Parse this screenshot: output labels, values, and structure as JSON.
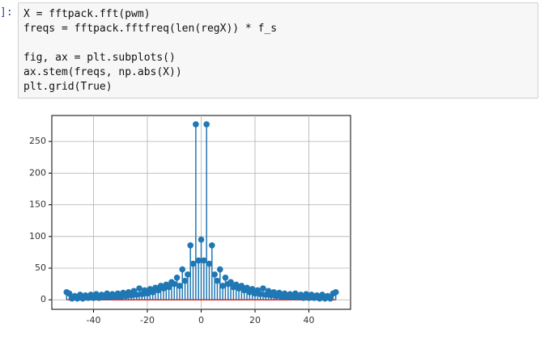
{
  "prompt": "]:",
  "code": [
    [
      "X = fftpack.fft(pwm)",
      "freqs = fftpack.fftfreq(len(regX)) * f_s"
    ],
    [
      "fig, ax = plt.subplots()",
      "ax.stem(freqs, np.abs(X))",
      "plt.grid(True)"
    ]
  ],
  "chart_data": {
    "type": "stem",
    "color": "#1f77b4",
    "baseline_color": "#d62728",
    "grid": true,
    "x": [
      -50,
      -49,
      -48,
      -47,
      -46,
      -45,
      -44,
      -43,
      -42,
      -41,
      -40,
      -39,
      -38,
      -37,
      -36,
      -35,
      -34,
      -33,
      -32,
      -31,
      -30,
      -29,
      -28,
      -27,
      -26,
      -25,
      -24,
      -23,
      -22,
      -21,
      -20,
      -19,
      -18,
      -17,
      -16,
      -15,
      -14,
      -13,
      -12,
      -11,
      -10,
      -9,
      -8,
      -7,
      -6,
      -5,
      -4,
      -3,
      -2,
      -1,
      0,
      1,
      2,
      3,
      4,
      5,
      6,
      7,
      8,
      9,
      10,
      11,
      12,
      13,
      14,
      15,
      16,
      17,
      18,
      19,
      20,
      21,
      22,
      23,
      24,
      25,
      26,
      27,
      28,
      29,
      30,
      31,
      32,
      33,
      34,
      35,
      36,
      37,
      38,
      39,
      40,
      41,
      42,
      43,
      44,
      45,
      46,
      47,
      48,
      49,
      50
    ],
    "values": [
      12,
      10,
      2,
      6,
      2,
      8,
      2,
      7,
      3,
      8,
      3,
      9,
      3,
      8,
      4,
      10,
      4,
      9,
      5,
      10,
      5,
      11,
      6,
      12,
      7,
      14,
      8,
      18,
      9,
      15,
      10,
      17,
      12,
      19,
      15,
      22,
      18,
      24,
      20,
      28,
      25,
      35,
      22,
      48,
      30,
      40,
      86,
      57,
      277,
      62,
      95,
      62,
      277,
      57,
      86,
      40,
      30,
      48,
      22,
      35,
      25,
      28,
      20,
      24,
      18,
      22,
      15,
      19,
      12,
      17,
      10,
      15,
      9,
      18,
      8,
      14,
      7,
      12,
      6,
      11,
      5,
      10,
      5,
      9,
      4,
      10,
      4,
      8,
      3,
      9,
      3,
      8,
      3,
      7,
      2,
      8,
      2,
      6,
      2,
      10,
      12
    ],
    "xlim": [
      -55.5,
      55.5
    ],
    "xticks": [
      -40,
      -20,
      0,
      20,
      40
    ],
    "ylim": [
      -15,
      291
    ],
    "yticks": [
      0,
      50,
      100,
      150,
      200,
      250
    ]
  }
}
